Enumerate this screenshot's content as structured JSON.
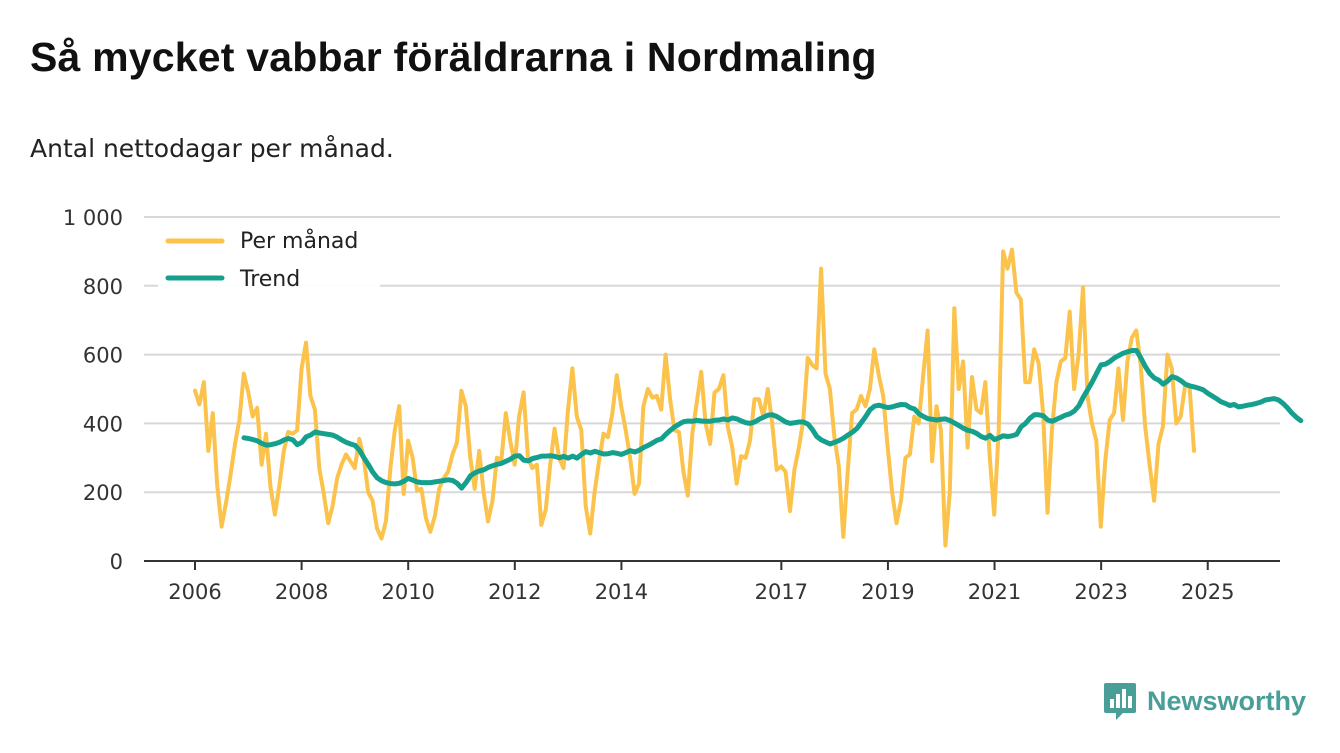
{
  "chart_data": {
    "type": "line",
    "title": "Så mycket vabbar föräldrarna i Nordmaling",
    "subtitle": "Antal nettodagar per månad.",
    "xlabel": "",
    "ylabel": "",
    "ylim": [
      0,
      1000
    ],
    "yticks": [
      0,
      200,
      400,
      600,
      800,
      1000
    ],
    "ytick_labels": [
      "0",
      "200",
      "400",
      "600",
      "800",
      "1 000"
    ],
    "xlim": [
      2006.0,
      2025.38
    ],
    "xticks": [
      2006,
      2008,
      2010,
      2012,
      2014,
      2017,
      2019,
      2021,
      2023,
      2025
    ],
    "xtick_labels": [
      "2006",
      "2008",
      "2010",
      "2012",
      "2014",
      "2017",
      "2019",
      "2021",
      "2023",
      "2025"
    ],
    "grid": true,
    "legend_position": "top-left",
    "colors": {
      "per_manad": "#fbc34b",
      "trend": "#15a08e",
      "grid": "#d8d8d8",
      "axis": "#333333"
    },
    "series": [
      {
        "name": "Per månad",
        "start": 2006.0,
        "step": 0.0833,
        "values": [
          495,
          455,
          520,
          320,
          430,
          220,
          100,
          170,
          250,
          340,
          410,
          545,
          490,
          420,
          445,
          280,
          370,
          215,
          135,
          220,
          320,
          375,
          370,
          380,
          560,
          635,
          480,
          440,
          270,
          195,
          110,
          160,
          240,
          280,
          310,
          290,
          270,
          355,
          300,
          200,
          175,
          95,
          65,
          115,
          270,
          380,
          450,
          195,
          350,
          300,
          205,
          210,
          125,
          85,
          130,
          210,
          240,
          260,
          310,
          345,
          495,
          450,
          300,
          210,
          320,
          200,
          115,
          175,
          300,
          295,
          430,
          350,
          280,
          420,
          490,
          300,
          270,
          280,
          105,
          150,
          280,
          385,
          300,
          270,
          440,
          560,
          420,
          380,
          160,
          80,
          200,
          290,
          370,
          360,
          430,
          540,
          450,
          380,
          300,
          195,
          225,
          450,
          500,
          475,
          480,
          440,
          600,
          470,
          380,
          375,
          260,
          190,
          370,
          460,
          550,
          400,
          340,
          490,
          500,
          540,
          390,
          330,
          225,
          305,
          300,
          350,
          470,
          470,
          420,
          500,
          400,
          265,
          275,
          260,
          145,
          265,
          330,
          410,
          590,
          570,
          560,
          850,
          545,
          500,
          360,
          275,
          70,
          260,
          430,
          440,
          480,
          450,
          500,
          615,
          540,
          480,
          330,
          200,
          110,
          175,
          300,
          310,
          420,
          400,
          540,
          670,
          290,
          450,
          380,
          45,
          200,
          735,
          500,
          580,
          330,
          535,
          440,
          430,
          520,
          300,
          135,
          380,
          900,
          850,
          905,
          780,
          760,
          520,
          520,
          615,
          575,
          430,
          140,
          380,
          520,
          580,
          590,
          725,
          500,
          600,
          795,
          480,
          400,
          350,
          100,
          290,
          410,
          430,
          560,
          410,
          580,
          650,
          670,
          570,
          390,
          280,
          175,
          340,
          390,
          600,
          560,
          400,
          420,
          510,
          505,
          320
        ]
      },
      {
        "name": "Trend",
        "start": 2006.92,
        "step": 0.0833,
        "values": [
          358,
          356,
          353,
          349,
          342,
          337,
          338,
          341,
          345,
          352,
          356,
          352,
          338,
          345,
          361,
          366,
          375,
          372,
          370,
          368,
          366,
          360,
          352,
          345,
          340,
          336,
          322,
          300,
          280,
          258,
          242,
          233,
          228,
          225,
          224,
          226,
          232,
          240,
          235,
          230,
          228,
          228,
          228,
          230,
          232,
          234,
          236,
          234,
          226,
          212,
          228,
          248,
          256,
          262,
          265,
          272,
          277,
          281,
          284,
          290,
          296,
          305,
          306,
          293,
          291,
          298,
          301,
          305,
          305,
          306,
          304,
          300,
          304,
          299,
          305,
          299,
          310,
          318,
          314,
          319,
          315,
          311,
          312,
          315,
          313,
          310,
          315,
          321,
          317,
          322,
          330,
          336,
          343,
          351,
          355,
          368,
          380,
          390,
          398,
          405,
          407,
          406,
          409,
          407,
          406,
          406,
          409,
          410,
          413,
          410,
          416,
          413,
          407,
          402,
          400,
          404,
          412,
          418,
          424,
          425,
          420,
          412,
          404,
          400,
          402,
          404,
          404,
          398,
          382,
          362,
          352,
          346,
          340,
          345,
          350,
          357,
          366,
          374,
          385,
          402,
          420,
          440,
          450,
          453,
          449,
          446,
          448,
          452,
          455,
          454,
          446,
          442,
          428,
          420,
          414,
          412,
          410,
          412,
          413,
          408,
          401,
          394,
          386,
          380,
          377,
          371,
          362,
          357,
          365,
          353,
          358,
          364,
          362,
          364,
          368,
          390,
          400,
          415,
          425,
          425,
          422,
          410,
          406,
          412,
          418,
          424,
          428,
          436,
          451,
          476,
          498,
          520,
          545,
          570,
          572,
          580,
          590,
          597,
          604,
          608,
          612,
          612,
          590,
          565,
          545,
          532,
          526,
          514,
          523,
          536,
          532,
          524,
          514,
          509,
          506,
          502,
          498,
          488,
          480,
          472,
          463,
          458,
          452,
          455,
          448,
          450,
          453,
          455,
          458,
          462,
          468,
          470,
          472,
          468,
          458,
          445,
          430,
          418,
          408
        ]
      }
    ]
  },
  "brand": {
    "name": "Newsworthy",
    "icon": "bar-chart-chat-icon"
  }
}
